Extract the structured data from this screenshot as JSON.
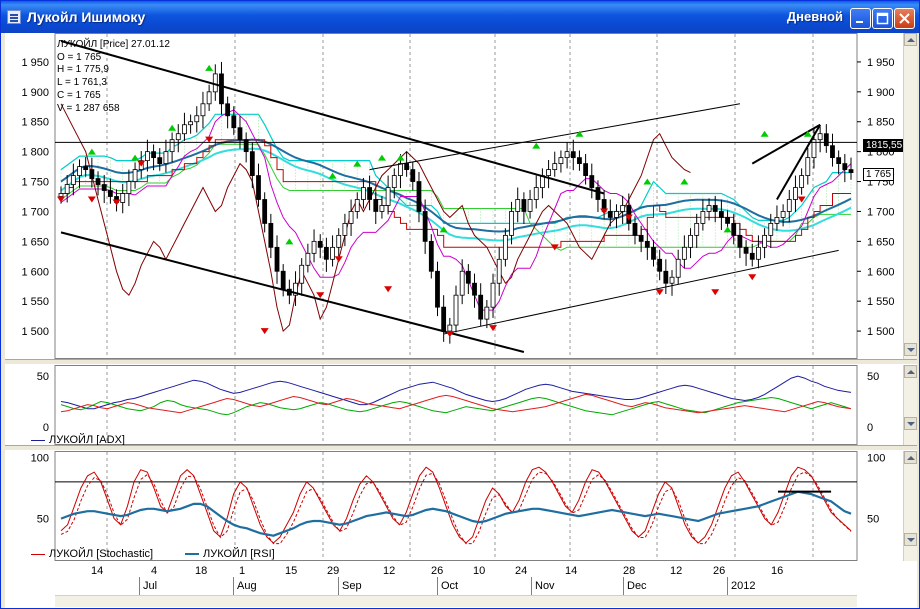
{
  "window": {
    "title": "Лукойл Ишимоку",
    "mode": "Дневной"
  },
  "icons": {
    "app": "chart-app-icon",
    "minimize": "minimize-icon",
    "maximize": "maximize-icon",
    "close": "close-icon",
    "scroll_up": "arrow-up-icon",
    "scroll_down": "arrow-down-icon"
  },
  "colors": {
    "titlebar": "#0a48cf",
    "candle": "#000000",
    "kijun": "#cc0000",
    "tenkan": "#cc00cc",
    "senkou": "#00cccc",
    "ma": "#1f6ea0",
    "chikou": "#800000",
    "up_signal": "#00cc00",
    "down_signal": "#dd0000",
    "adx": "#1c1c9e",
    "dmi_plus": "#00aa00",
    "dmi_minus": "#dd2020",
    "stochastic": "#cc0000",
    "rsi": "#1f6ea0"
  },
  "info": {
    "header": "ЛУКОЙЛ [Price] 27.01.12",
    "open": "O = 1 765",
    "high": "H = 1 775,9",
    "low": "L = 1 761,3",
    "close": "C = 1 765",
    "volume": "V = 1 287 658"
  },
  "price_tags": {
    "level": "1815,55",
    "last": "1 765"
  },
  "chart_data": [
    {
      "type": "candlestick",
      "name": "price",
      "yticks": [
        "1 950",
        "1 900",
        "1 850",
        "1 800",
        "1 750",
        "1 700",
        "1 650",
        "1 600",
        "1 550",
        "1 500"
      ],
      "ylim": [
        1460,
        1985
      ],
      "horizontal_line": 1815.55,
      "last": 1765,
      "close": [
        1730,
        1745,
        1760,
        1775,
        1770,
        1755,
        1745,
        1735,
        1725,
        1715,
        1730,
        1750,
        1770,
        1785,
        1800,
        1790,
        1780,
        1800,
        1820,
        1830,
        1845,
        1850,
        1860,
        1880,
        1900,
        1930,
        1880,
        1860,
        1840,
        1820,
        1800,
        1760,
        1720,
        1680,
        1640,
        1600,
        1570,
        1560,
        1580,
        1610,
        1630,
        1650,
        1640,
        1620,
        1640,
        1660,
        1680,
        1700,
        1720,
        1740,
        1720,
        1700,
        1710,
        1740,
        1760,
        1780,
        1770,
        1750,
        1700,
        1650,
        1600,
        1540,
        1500,
        1510,
        1560,
        1600,
        1580,
        1560,
        1520,
        1540,
        1580,
        1620,
        1660,
        1700,
        1720,
        1700,
        1720,
        1740,
        1760,
        1770,
        1780,
        1790,
        1800,
        1790,
        1780,
        1760,
        1740,
        1720,
        1700,
        1690,
        1700,
        1710,
        1680,
        1660,
        1650,
        1640,
        1620,
        1600,
        1580,
        1590,
        1620,
        1640,
        1660,
        1680,
        1700,
        1710,
        1700,
        1690,
        1680,
        1660,
        1640,
        1630,
        1620,
        1640,
        1660,
        1680,
        1690,
        1700,
        1720,
        1740,
        1760,
        1790,
        1820,
        1830,
        1810,
        1790,
        1780,
        1770,
        1765
      ],
      "up_arrows": [
        [
          5,
          1800
        ],
        [
          12,
          1790
        ],
        [
          18,
          1840
        ],
        [
          24,
          1940
        ],
        [
          37,
          1650
        ],
        [
          44,
          1760
        ],
        [
          48,
          1780
        ],
        [
          52,
          1790
        ],
        [
          55,
          1790
        ],
        [
          62,
          1670
        ],
        [
          77,
          1810
        ],
        [
          84,
          1830
        ],
        [
          95,
          1750
        ],
        [
          101,
          1750
        ],
        [
          108,
          1670
        ],
        [
          114,
          1830
        ],
        [
          121,
          1830
        ]
      ],
      "down_arrows": [
        [
          0,
          1720
        ],
        [
          5,
          1720
        ],
        [
          9,
          1715
        ],
        [
          13,
          1780
        ],
        [
          24,
          1820
        ],
        [
          33,
          1500
        ],
        [
          42,
          1560
        ],
        [
          45,
          1620
        ],
        [
          53,
          1570
        ],
        [
          63,
          1495
        ],
        [
          70,
          1505
        ],
        [
          80,
          1640
        ],
        [
          88,
          1700
        ],
        [
          92,
          1690
        ],
        [
          97,
          1565
        ],
        [
          106,
          1565
        ],
        [
          112,
          1590
        ],
        [
          120,
          1720
        ]
      ],
      "x_ticks": [
        "14",
        "4",
        "18",
        "1",
        "15",
        "29",
        "12",
        "26",
        "10",
        "24",
        "14",
        "28",
        "12",
        "26",
        "16"
      ],
      "months": [
        "Jul",
        "Aug",
        "Sep",
        "Oct",
        "Nov",
        "Dec",
        "2012"
      ]
    },
    {
      "type": "line",
      "name": "adx",
      "yticks": [
        "50",
        "0"
      ],
      "ylim": [
        0,
        55
      ],
      "series": [
        {
          "name": "ЛУКОЙЛ [ADX]",
          "values": [
            25,
            24,
            22,
            20,
            18,
            18,
            20,
            22,
            24,
            25,
            27,
            28,
            30,
            32,
            34,
            36,
            38,
            40,
            42,
            44,
            46,
            45,
            43,
            40,
            37,
            35,
            33,
            34,
            36,
            38,
            40,
            42,
            44,
            45,
            44,
            42,
            40,
            38,
            36,
            34,
            32,
            30,
            28,
            26,
            24,
            22,
            22,
            24,
            27,
            30,
            33,
            36,
            38,
            40,
            42,
            43,
            44,
            42,
            40,
            38,
            35,
            32,
            30,
            28,
            26,
            25,
            26,
            28,
            31,
            34,
            37,
            39,
            41,
            42,
            41,
            39,
            37,
            35,
            34,
            33,
            32,
            31,
            30,
            29,
            28,
            27,
            27,
            28,
            30,
            32,
            34,
            36,
            38,
            40,
            41,
            40,
            38,
            36,
            34,
            32,
            30,
            28,
            27,
            26,
            27,
            29,
            32,
            36,
            40,
            44,
            48,
            50,
            48,
            45,
            43,
            40,
            38,
            36,
            35,
            34
          ]
        },
        {
          "values": [
            22,
            20,
            18,
            17,
            19,
            22,
            25,
            24,
            22,
            20,
            18,
            17,
            16,
            18,
            20,
            24,
            26,
            25,
            22,
            20,
            19,
            18,
            17,
            15,
            13,
            12,
            14,
            17,
            20,
            22,
            24,
            23,
            21,
            19,
            18,
            17,
            18,
            20,
            22,
            24,
            23,
            21,
            19,
            17,
            16,
            15,
            16,
            18,
            20,
            22,
            24,
            25,
            24,
            22,
            20,
            18,
            16,
            15,
            14,
            16,
            18,
            20,
            19,
            18,
            17,
            16,
            18,
            20,
            22,
            24,
            26,
            28,
            29,
            28,
            26,
            24,
            22,
            20,
            18,
            16,
            15,
            14,
            13,
            12,
            14,
            16,
            18,
            20,
            22,
            24,
            25,
            23,
            21,
            19,
            17,
            16,
            15,
            14,
            16,
            18,
            20,
            22,
            24,
            25,
            26,
            27,
            28,
            29,
            28,
            26,
            24,
            22,
            20,
            18,
            20,
            22,
            24,
            22,
            20,
            18
          ]
        },
        {
          "values": [
            15,
            16,
            18,
            20,
            22,
            21,
            19,
            18,
            20,
            22,
            24,
            23,
            21,
            19,
            18,
            17,
            16,
            15,
            14,
            16,
            18,
            20,
            22,
            24,
            26,
            28,
            27,
            25,
            23,
            21,
            20,
            22,
            24,
            26,
            28,
            30,
            29,
            27,
            25,
            23,
            22,
            24,
            26,
            28,
            27,
            25,
            23,
            22,
            21,
            20,
            19,
            18,
            20,
            22,
            24,
            26,
            28,
            30,
            31,
            30,
            28,
            26,
            24,
            22,
            20,
            18,
            17,
            16,
            15,
            16,
            17,
            18,
            19,
            20,
            22,
            24,
            26,
            28,
            30,
            32,
            31,
            29,
            27,
            25,
            23,
            21,
            20,
            22,
            24,
            23,
            21,
            19,
            18,
            17,
            16,
            15,
            14,
            15,
            16,
            17,
            18,
            19,
            20,
            21,
            20,
            19,
            18,
            17,
            16,
            15,
            17,
            19,
            21,
            23,
            25,
            24,
            22,
            20,
            19,
            18
          ]
        }
      ]
    },
    {
      "type": "line",
      "name": "oscillators",
      "yticks": [
        "100",
        "50"
      ],
      "ylim": [
        30,
        102
      ],
      "reference_line": 80,
      "series": [
        {
          "name": "ЛУКОЙЛ [Stochastic]",
          "values": [
            40,
            45,
            60,
            75,
            85,
            88,
            80,
            65,
            50,
            45,
            60,
            80,
            90,
            88,
            75,
            60,
            55,
            70,
            85,
            90,
            85,
            70,
            55,
            40,
            35,
            50,
            70,
            80,
            75,
            60,
            45,
            35,
            30,
            35,
            45,
            55,
            70,
            80,
            75,
            65,
            55,
            45,
            40,
            50,
            65,
            78,
            85,
            80,
            70,
            60,
            50,
            45,
            55,
            70,
            85,
            92,
            88,
            75,
            60,
            45,
            35,
            30,
            35,
            50,
            65,
            75,
            70,
            60,
            55,
            65,
            80,
            90,
            92,
            88,
            80,
            70,
            60,
            55,
            65,
            80,
            90,
            88,
            80,
            70,
            60,
            50,
            40,
            35,
            40,
            55,
            70,
            80,
            75,
            60,
            45,
            35,
            30,
            35,
            45,
            60,
            75,
            85,
            88,
            80,
            70,
            60,
            50,
            45,
            55,
            70,
            85,
            92,
            90,
            85,
            75,
            65,
            55,
            50,
            45,
            40
          ]
        },
        {
          "name": "ЛУКОЙЛ [RSI]",
          "values": [
            50,
            52,
            54,
            55,
            56,
            56,
            55,
            54,
            53,
            52,
            53,
            55,
            57,
            58,
            58,
            57,
            56,
            57,
            58,
            60,
            62,
            62,
            60,
            56,
            52,
            48,
            45,
            43,
            42,
            40,
            38,
            37,
            36,
            38,
            40,
            42,
            45,
            47,
            48,
            48,
            47,
            46,
            45,
            46,
            48,
            50,
            52,
            53,
            54,
            55,
            54,
            53,
            52,
            53,
            55,
            57,
            58,
            57,
            56,
            54,
            52,
            50,
            48,
            47,
            48,
            50,
            52,
            54,
            55,
            56,
            57,
            58,
            58,
            57,
            56,
            55,
            54,
            53,
            52,
            53,
            54,
            55,
            56,
            57,
            56,
            55,
            54,
            53,
            52,
            53,
            54,
            53,
            52,
            51,
            50,
            49,
            48,
            50,
            52,
            54,
            55,
            56,
            57,
            58,
            59,
            60,
            62,
            64,
            66,
            68,
            70,
            72,
            71,
            70,
            68,
            66,
            64,
            60,
            56,
            54
          ]
        }
      ]
    }
  ],
  "legends": {
    "adx": "ЛУКОЙЛ [ADX]",
    "stochastic": "ЛУКОЙЛ [Stochastic]",
    "rsi": "ЛУКОЙЛ [RSI]"
  }
}
